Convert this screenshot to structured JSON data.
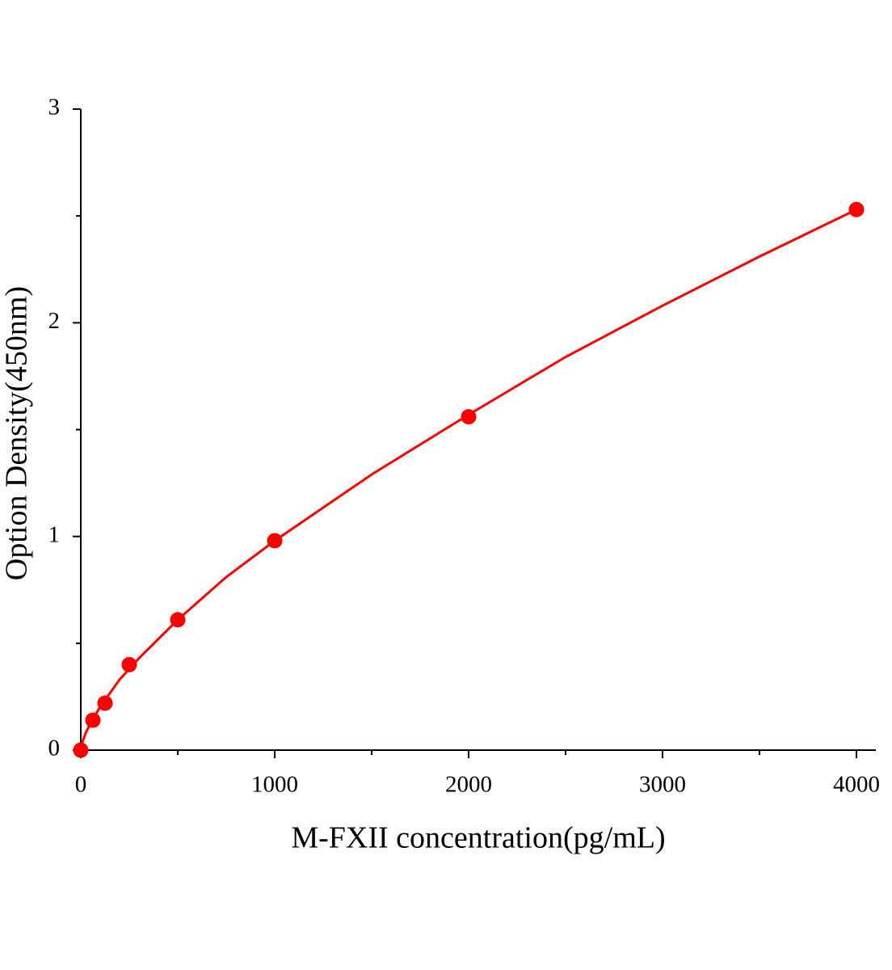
{
  "chart_data": {
    "type": "scatter",
    "xlabel": "M-FXII concentration(pg/mL)",
    "ylabel": "Option Density(450nm)",
    "xlim": [
      0,
      4100
    ],
    "xticks": [
      0,
      1000,
      2000,
      3000,
      4000
    ],
    "xminorticks": [
      500,
      1500,
      2500,
      3500
    ],
    "ylim": [
      0,
      3
    ],
    "yticks": [
      0,
      1,
      2,
      3
    ],
    "yminorticks": [
      0.5,
      1.5,
      2.5
    ],
    "grid": false,
    "series": [
      {
        "mode": "markers",
        "color": "#ff0000",
        "x": [
          0,
          62.5,
          125,
          250,
          500,
          1000,
          2000,
          4000
        ],
        "values": [
          0,
          0.14,
          0.22,
          0.4,
          0.61,
          0.98,
          1.56,
          2.53
        ]
      },
      {
        "mode": "line",
        "color": "#ff0000",
        "x": [
          0,
          10,
          25,
          50,
          100,
          200,
          300,
          500,
          750,
          1000,
          1500,
          2000,
          2500,
          3000,
          3500,
          4000
        ],
        "values": [
          0,
          0.042,
          0.079,
          0.126,
          0.203,
          0.33,
          0.43,
          0.61,
          0.81,
          0.98,
          1.29,
          1.57,
          1.84,
          2.08,
          2.31,
          2.53
        ]
      }
    ]
  }
}
